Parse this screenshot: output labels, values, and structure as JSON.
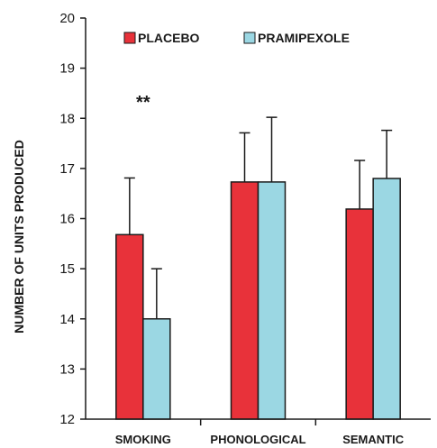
{
  "chart_data": {
    "type": "bar",
    "ylabel": "NUMBER OF UNITS PRODUCED",
    "xlabel": "",
    "categories": [
      "SMOKING",
      "PHONOLOGICAL",
      "SEMANTIC"
    ],
    "ylim": [
      12,
      20
    ],
    "yticks": [
      12,
      13,
      14,
      15,
      16,
      17,
      18,
      19,
      20
    ],
    "series": [
      {
        "name": "PLACEBO",
        "color": "#e8323a",
        "values": [
          15.68,
          16.73,
          16.19
        ],
        "errors": [
          1.13,
          0.98,
          0.97
        ]
      },
      {
        "name": "PRAMIPEXOLE",
        "color": "#9bd7e3",
        "values": [
          14.0,
          16.73,
          16.8
        ],
        "errors": [
          1.0,
          1.29,
          0.96
        ]
      }
    ],
    "annotations": [
      {
        "text": "**",
        "category": "SMOKING",
        "y": 18.2
      }
    ],
    "legend_position": "top",
    "grid": false
  }
}
